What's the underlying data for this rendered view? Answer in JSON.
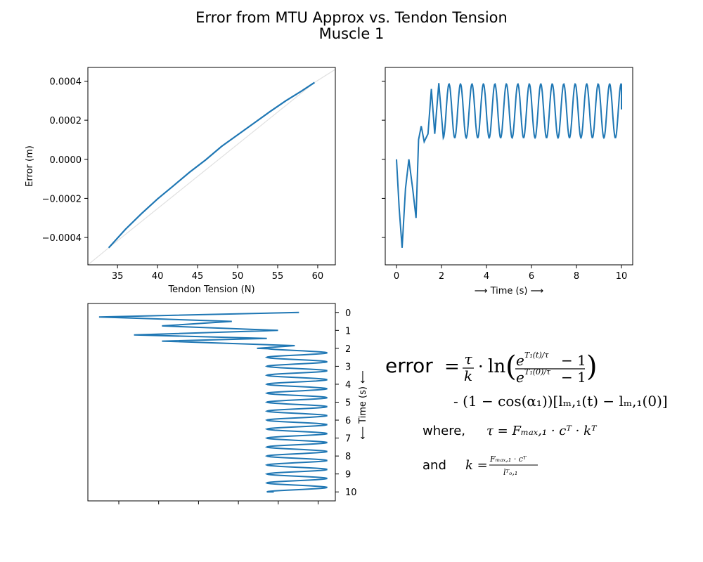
{
  "title_line1": "Error from MTU Approx vs. Tendon Tension",
  "title_line2": "Muscle 1",
  "chart_data": [
    {
      "type": "line",
      "panel": "top-left",
      "xlabel": "Tendon Tension (N)",
      "ylabel": "Error (m)",
      "xlim": [
        31.3,
        62.2
      ],
      "ylim": [
        -0.00054,
        0.00047
      ],
      "xticks": [
        35,
        40,
        45,
        50,
        55,
        60
      ],
      "xtick_labels": [
        "35",
        "40",
        "45",
        "50",
        "55",
        "60"
      ],
      "yticks": [
        -0.0004,
        -0.0002,
        0.0,
        0.0002,
        0.0004
      ],
      "ytick_labels": [
        "−0.0004",
        "−0.0002",
        "0.0000",
        "0.0002",
        "0.0004"
      ],
      "series": [
        {
          "color": "#1f77b4",
          "x": [
            33.9,
            36.0,
            38.0,
            40.0,
            42.0,
            44.0,
            46.0,
            48.0,
            50.0,
            52.0,
            54.0,
            56.0,
            58.0,
            59.6
          ],
          "y": [
            -0.000453,
            -0.000358,
            -0.000278,
            -0.000203,
            -0.000135,
            -6.6e-05,
            -3e-06,
            6.6e-05,
            0.000125,
            0.000184,
            0.000243,
            0.000299,
            0.00035,
            0.000393
          ]
        },
        {
          "color": "#e0e0e0",
          "x": [
            31.3,
            33.9,
            59.6,
            62.2
          ],
          "y": [
            -0.00054,
            -0.000453,
            0.000393,
            0.00046
          ]
        }
      ]
    },
    {
      "type": "line",
      "panel": "top-right",
      "xlabel": "⟶ Time (s) ⟶",
      "xlim": [
        -0.5,
        10.5
      ],
      "ylim": [
        -0.00054,
        0.00047
      ],
      "xticks": [
        0,
        2,
        4,
        6,
        8,
        10
      ],
      "xtick_labels": [
        "0",
        "2",
        "4",
        "6",
        "8",
        "10"
      ],
      "yticks": [
        -0.0004,
        -0.0002,
        0.0,
        0.0002,
        0.0004
      ],
      "series": [
        {
          "color": "#1f77b4",
          "x": [
            0.0,
            0.12,
            0.25,
            0.4,
            0.55,
            0.72,
            0.87,
            0.98,
            1.1,
            1.23,
            1.4,
            1.55,
            1.7,
            1.88,
            2.08
          ],
          "y": [
            0.0,
            -0.00025,
            -0.000453,
            -0.00015,
            0.0,
            -0.00015,
            -0.0003,
            0.0001,
            0.00017,
            9e-05,
            0.00013,
            0.00036,
            0.00013,
            0.00039,
            0.00011
          ],
          "steady": {
            "x_start": 2.08,
            "x_end": 10.0,
            "period": 0.51,
            "min": 0.00011,
            "max": 0.000385,
            "end_y": 0.000255
          }
        }
      ]
    },
    {
      "type": "line",
      "panel": "bottom-left",
      "ylabel": "⟵ Time (s) ⟵",
      "ylim": [
        10.5,
        -0.5
      ],
      "yticks": [
        0,
        1,
        2,
        3,
        4,
        5,
        6,
        7,
        8,
        9,
        10
      ],
      "ytick_labels": [
        "0",
        "1",
        "2",
        "3",
        "4",
        "5",
        "6",
        "7",
        "8",
        "9",
        "10"
      ],
      "xticks_unlabeled": 6,
      "series": [
        {
          "color": "#1f77b4",
          "x": [
            0.48,
            -0.95,
            0.0,
            -0.5,
            0.33,
            -0.7,
            0.25,
            -0.5,
            0.45,
            0.18
          ],
          "t": [
            0.0,
            0.25,
            0.5,
            0.75,
            1.0,
            1.25,
            1.45,
            1.6,
            1.85,
            2.0
          ],
          "steady": {
            "t_start": 2.0,
            "t_end": 10.0,
            "period": 0.5,
            "min": 0.25,
            "max": 0.68,
            "end_value": 0.3
          }
        }
      ]
    }
  ],
  "equation": {
    "error_word": "error",
    "eq_sign": "=",
    "tau": "τ",
    "k": "k",
    "cdot": "·",
    "ln": "ln",
    "lparen": "(",
    "rparen": ")",
    "num_base": "e",
    "num_exp": "T₁(t)/τ",
    "den_exp": "T₁(0)/τ",
    "minus_one": "− 1",
    "line2": "- (1 − cos(α₁))[lₘ,₁(t) − lₘ,₁(0)]",
    "where_word": "where,",
    "tau_def": "τ = Fₘₐₓ,₁ · cᵀ · kᵀ",
    "and_word": "and",
    "k_lhs": "k =",
    "k_num": "Fₘₐₓ,₁ · cᵀ",
    "k_den": "lᵀₒ,₁"
  }
}
